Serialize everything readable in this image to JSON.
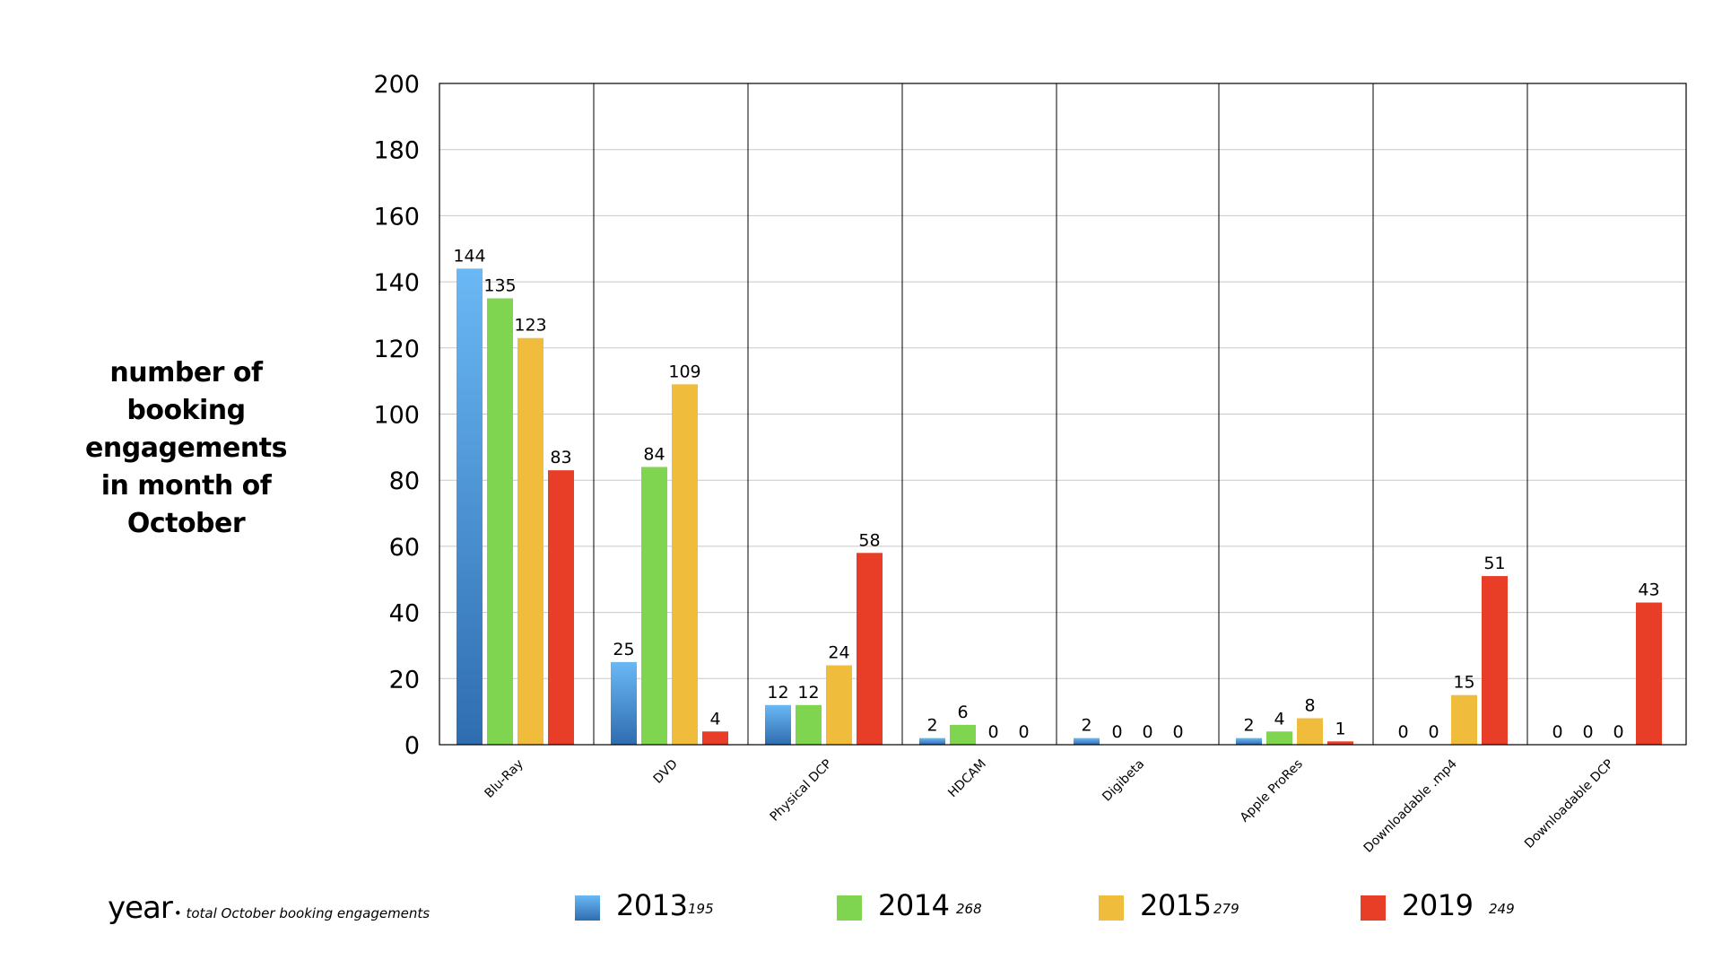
{
  "chart_data": {
    "type": "bar",
    "categories": [
      "Blu-Ray",
      "DVD",
      "Physical DCP",
      "HDCAM",
      "Digibeta",
      "Apple ProRes",
      "Downloadable .mp4",
      "Downloadable DCP"
    ],
    "series": [
      {
        "name": "2013",
        "total": "195",
        "color": "#4d9fe0",
        "values": [
          144,
          25,
          12,
          2,
          2,
          2,
          0,
          0
        ]
      },
      {
        "name": "2014",
        "total": "268",
        "color": "#7fd550",
        "values": [
          135,
          84,
          12,
          6,
          0,
          4,
          0,
          0
        ]
      },
      {
        "name": "2015",
        "total": "279",
        "color": "#f0bc3c",
        "values": [
          123,
          109,
          24,
          0,
          0,
          8,
          15,
          0
        ]
      },
      {
        "name": "2019",
        "total": "249",
        "color": "#e83e28",
        "values": [
          83,
          4,
          58,
          0,
          0,
          1,
          51,
          43
        ]
      }
    ],
    "y_ticks": [
      0,
      20,
      40,
      60,
      80,
      100,
      120,
      140,
      160,
      180,
      200
    ],
    "ylim": [
      0,
      200
    ],
    "grid": true,
    "legend_placement": "bottom",
    "ylabel_lines": [
      "number of",
      "booking",
      "engagements",
      "in month of",
      "October"
    ],
    "legend_caption": {
      "year_word": "year",
      "description": "• total October booking engagements"
    }
  }
}
